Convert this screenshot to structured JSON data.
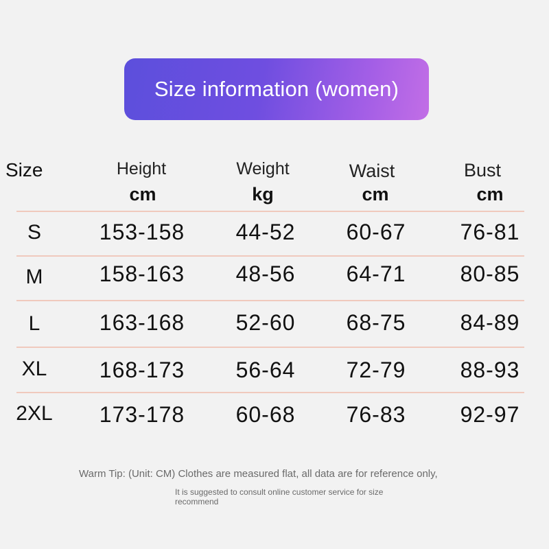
{
  "banner": {
    "title": "Size information (women)"
  },
  "header": {
    "size": "Size",
    "columns": [
      {
        "name": "Height",
        "unit": "cm"
      },
      {
        "name": "Weight",
        "unit": "kg"
      },
      {
        "name": "Waist",
        "unit": "cm"
      },
      {
        "name": "Bust",
        "unit": "cm"
      }
    ]
  },
  "rows": [
    {
      "size": "S",
      "values": [
        "153-158",
        "44-52",
        "60-67",
        "76-81"
      ]
    },
    {
      "size": "M",
      "values": [
        "158-163",
        "48-56",
        "64-71",
        "80-85"
      ]
    },
    {
      "size": "L",
      "values": [
        "163-168",
        "52-60",
        "68-75",
        "84-89"
      ]
    },
    {
      "size": "XL",
      "values": [
        "168-173",
        "56-64",
        "72-79",
        "88-93"
      ]
    },
    {
      "size": "2XL",
      "values": [
        "173-178",
        "60-68",
        "76-83",
        "92-97"
      ]
    }
  ],
  "notes": {
    "tip": "Warm Tip: (Unit: CM) Clothes are measured flat, all data are for reference only,",
    "suggest": "It is suggested to consult online customer service for size recommend"
  },
  "colors": {
    "banner_start": "#5c4fdc",
    "banner_end": "#c26ee6",
    "divider": "#f0c9bd",
    "background": "#f2f2f2"
  }
}
